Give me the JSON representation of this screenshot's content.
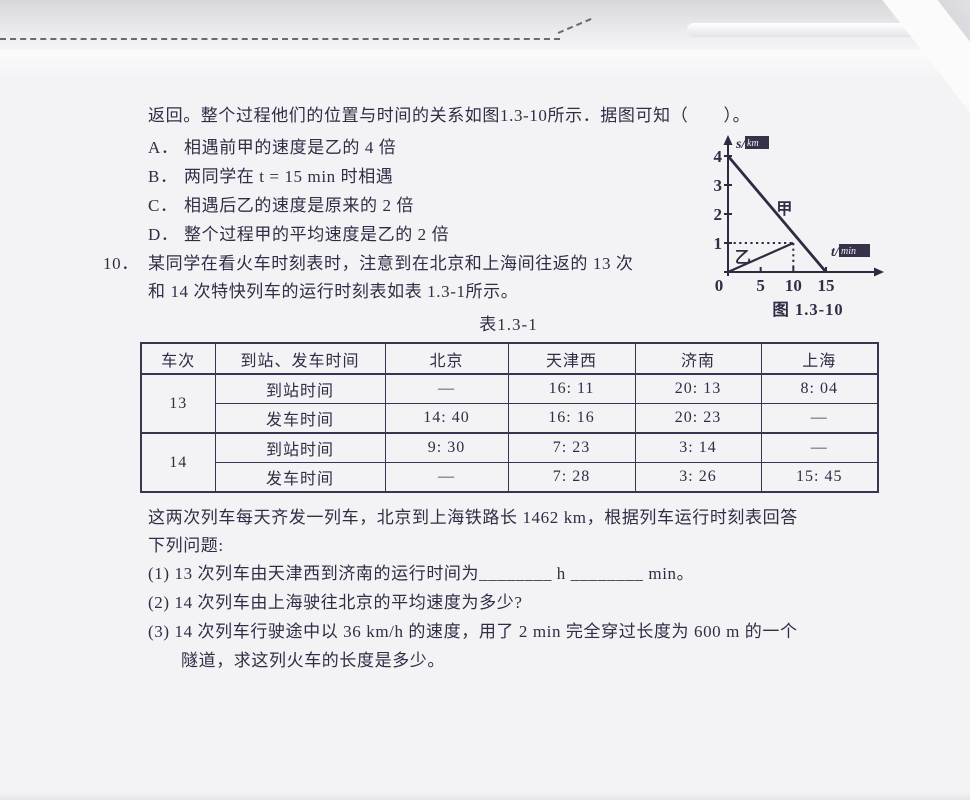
{
  "page": {
    "intro": "返回。整个过程他们的位置与时间的关系如图1.3-10所示．据图可知（　　）。",
    "options": [
      {
        "label": "A．",
        "text": "相遇前甲的速度是乙的 4 倍"
      },
      {
        "label": "B．",
        "text": "两同学在 t = 15 min 时相遇"
      },
      {
        "label": "C．",
        "text": "相遇后乙的速度是原来的 2 倍"
      },
      {
        "label": "D．",
        "text": "整个过程甲的平均速度是乙的 2 倍"
      }
    ],
    "q10": {
      "number": "10．",
      "line1": "某同学在看火车时刻表时，注意到在北京和上海间往返的 13 次",
      "line2": "和 14 次特快列车的运行时刻表如表 1.3-1所示。"
    },
    "closing": {
      "line1": "这两次列车每天齐发一列车，北京到上海铁路长 1462 km，根据列车运行时刻表回答",
      "line2": "下列问题:",
      "sub1": "(1) 13 次列车由天津西到济南的运行时间为________ h ________ min。",
      "sub2": "(2) 14 次列车由上海驶往北京的平均速度为多少?",
      "sub3a": "(3) 14 次列车行驶途中以 36 km/h 的速度，用了 2 min 完全穿过长度为 600 m 的一个",
      "sub3b": "隧道，求这列火车的长度是多少。"
    }
  },
  "table": {
    "caption": "表1.3-1",
    "headers": [
      "车次",
      "到站、发车时间",
      "北京",
      "天津西",
      "济南",
      "上海"
    ],
    "trains": [
      "13",
      "14"
    ],
    "row_types": [
      "到站时间",
      "发车时间",
      "到站时间",
      "发车时间"
    ],
    "rows": [
      [
        "—",
        "16: 11",
        "20: 13",
        "8: 04"
      ],
      [
        "14: 40",
        "16: 16",
        "20: 23",
        "—"
      ],
      [
        "9: 30",
        "7: 23",
        "3: 14",
        "—"
      ],
      [
        "—",
        "7: 28",
        "3: 26",
        "15: 45"
      ]
    ]
  },
  "chart_data": {
    "type": "line",
    "title": "图 1.3-10",
    "xlabel": "t/min",
    "ylabel": "s/km",
    "xlim": [
      0,
      17
    ],
    "ylim": [
      0,
      4.6
    ],
    "x_ticks": [
      5,
      10,
      15
    ],
    "y_ticks": [
      1,
      2,
      3,
      4
    ],
    "origin_label": "0",
    "grid": false,
    "series": [
      {
        "name": "甲",
        "points": [
          [
            0,
            4
          ],
          [
            15,
            0
          ]
        ],
        "label_at": [
          7.4,
          2.0
        ]
      },
      {
        "name": "乙",
        "points": [
          [
            0,
            0
          ],
          [
            10,
            1
          ]
        ],
        "label_at": [
          1.05,
          0.33
        ]
      }
    ],
    "guide_point": [
      10,
      1
    ],
    "line_color": "#2e2a40",
    "text_color": "#322c45"
  }
}
